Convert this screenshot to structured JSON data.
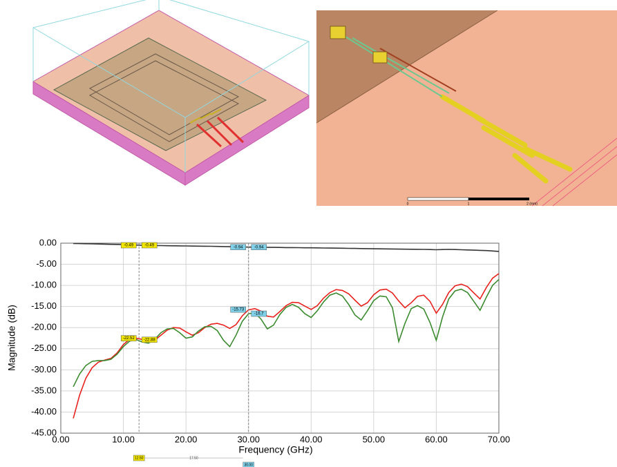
{
  "chart_data": {
    "type": "line",
    "x_label": "Frequency (GHz)",
    "y_label": "Magnitude (dB)",
    "xlim": [
      0,
      70
    ],
    "ylim": [
      -45,
      0
    ],
    "xticks": [
      {
        "value": 0,
        "label": "0.00"
      },
      {
        "value": 10,
        "label": "10.00"
      },
      {
        "value": 20,
        "label": "20.00"
      },
      {
        "value": 30,
        "label": "30.00"
      },
      {
        "value": 40,
        "label": "40.00"
      },
      {
        "value": 50,
        "label": "50.00"
      },
      {
        "value": 60,
        "label": "60.00"
      },
      {
        "value": 70,
        "label": "70.00"
      }
    ],
    "yticks": [
      {
        "value": 0,
        "label": "0.00"
      },
      {
        "value": -5,
        "label": "-5.00"
      },
      {
        "value": -10,
        "label": "-10.00"
      },
      {
        "value": -15,
        "label": "-15.00"
      },
      {
        "value": -20,
        "label": "-20.00"
      },
      {
        "value": -25,
        "label": "-25.00"
      },
      {
        "value": -30,
        "label": "-30.00"
      },
      {
        "value": -35,
        "label": "-35.00"
      },
      {
        "value": -40,
        "label": "-40.00"
      },
      {
        "value": -45,
        "label": "-45.00"
      }
    ],
    "grid": true,
    "x": [
      2,
      3,
      4,
      5,
      6,
      7,
      8,
      9,
      10,
      11,
      12,
      13,
      14,
      15,
      16,
      17,
      18,
      19,
      20,
      21,
      22,
      23,
      24,
      25,
      26,
      27,
      28,
      29,
      30,
      31,
      32,
      33,
      34,
      35,
      36,
      37,
      38,
      39,
      40,
      41,
      42,
      43,
      44,
      45,
      46,
      47,
      48,
      49,
      50,
      51,
      52,
      53,
      54,
      55,
      56,
      57,
      58,
      59,
      60,
      61,
      62,
      63,
      64,
      65,
      66,
      67,
      68,
      69,
      70
    ],
    "series": [
      {
        "color": "#333333",
        "values": [
          -0.08,
          -0.1,
          -0.13,
          -0.16,
          -0.2,
          -0.23,
          -0.27,
          -0.3,
          -0.34,
          -0.38,
          -0.44,
          -0.5,
          -0.52,
          -0.55,
          -0.57,
          -0.6,
          -0.62,
          -0.64,
          -0.66,
          -0.68,
          -0.7,
          -0.72,
          -0.74,
          -0.77,
          -0.8,
          -0.83,
          -0.86,
          -0.9,
          -0.94,
          -0.95,
          -0.97,
          -0.99,
          -1.0,
          -1.02,
          -1.04,
          -1.05,
          -1.07,
          -1.09,
          -1.1,
          -1.12,
          -1.14,
          -1.16,
          -1.18,
          -1.2,
          -1.22,
          -1.25,
          -1.28,
          -1.3,
          -1.32,
          -1.34,
          -1.36,
          -1.38,
          -1.4,
          -1.42,
          -1.44,
          -1.46,
          -1.48,
          -1.5,
          -1.55,
          -1.5,
          -1.48,
          -1.5,
          -1.55,
          -1.6,
          -1.65,
          -1.7,
          -1.75,
          -1.85,
          -1.95
        ]
      },
      {
        "color": "#e8211d",
        "values": [
          -41.5,
          -36,
          -32,
          -29.5,
          -28.2,
          -27.7,
          -27.3,
          -26,
          -24,
          -22.8,
          -22.5,
          -22.8,
          -23.3,
          -23,
          -21.8,
          -20.6,
          -20,
          -20.1,
          -21,
          -21.8,
          -21.2,
          -20,
          -19.2,
          -19,
          -19.4,
          -20.2,
          -19.3,
          -17.2,
          -15.8,
          -15.5,
          -16.1,
          -17.3,
          -17.5,
          -16.2,
          -14.8,
          -14,
          -14.1,
          -14.9,
          -15.7,
          -14.8,
          -13,
          -11.7,
          -11,
          -11.2,
          -12,
          -13.5,
          -14.9,
          -14.1,
          -12.2,
          -11.1,
          -10.9,
          -11.8,
          -13.7,
          -15.3,
          -14.1,
          -12.6,
          -12.3,
          -13.8,
          -16.6,
          -14.5,
          -11.7,
          -10.1,
          -9.7,
          -10.3,
          -11.8,
          -13.2,
          -10.5,
          -8.3,
          -7.2
        ]
      },
      {
        "color": "#3a8a2e",
        "values": [
          -34,
          -31,
          -29,
          -28,
          -27.8,
          -27.8,
          -27.5,
          -26.3,
          -24.5,
          -23.2,
          -22.8,
          -23.4,
          -23.7,
          -22.8,
          -21.2,
          -20.3,
          -20.2,
          -21.2,
          -22.5,
          -22.2,
          -20.8,
          -19.8,
          -19.7,
          -20.7,
          -23,
          -24.5,
          -21.8,
          -18.5,
          -16.7,
          -16.5,
          -18,
          -20.3,
          -19.4,
          -16.9,
          -15.2,
          -14.5,
          -15.2,
          -16.7,
          -17.6,
          -16,
          -13.9,
          -12.3,
          -11.8,
          -12.5,
          -14.5,
          -17,
          -18.2,
          -16,
          -13.6,
          -12.5,
          -12.7,
          -15.3,
          -23.3,
          -19,
          -15.5,
          -14.8,
          -15.6,
          -18.8,
          -23,
          -17.5,
          -13.2,
          -11.3,
          -10.9,
          -11.7,
          -13.8,
          -15.9,
          -12.8,
          -10,
          -8.6
        ]
      }
    ],
    "markers": [
      {
        "x": 12.5,
        "value": -0.49,
        "side": "left",
        "color": "#f2e600"
      },
      {
        "x": 12.5,
        "value": -0.49,
        "side": "right",
        "color": "#f2e600"
      },
      {
        "x": 30,
        "value": -0.94,
        "side": "left",
        "color": "#7fd0e8"
      },
      {
        "x": 30,
        "value": -0.94,
        "side": "right",
        "color": "#7fd0e8"
      },
      {
        "x": 30,
        "value": -15.73,
        "side": "left",
        "color": "#7fd0e8"
      },
      {
        "x": 30,
        "value": -16.7,
        "side": "right",
        "color": "#7fd0e8"
      },
      {
        "x": 12.5,
        "value": -22.52,
        "side": "left",
        "color": "#f2e600"
      },
      {
        "x": 12.5,
        "value": -22.88,
        "side": "right",
        "color": "#f2e600"
      }
    ],
    "marker_lines": [
      {
        "value": 12.5,
        "label": "12.50",
        "color": "#f2e600"
      },
      {
        "value": 30,
        "label": "30.00",
        "color": "#7fd0e8"
      }
    ],
    "marker_delta": "17.50"
  },
  "scale_bar": {
    "labels": [
      "0",
      "1",
      "2 (mm)"
    ]
  }
}
